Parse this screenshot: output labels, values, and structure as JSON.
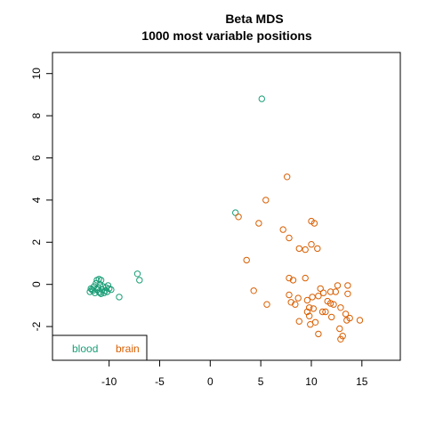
{
  "chart_data": {
    "type": "scatter",
    "title": "Beta MDS",
    "subtitle": "1000 most variable positions",
    "xlabel": "",
    "ylabel": "",
    "xlim": [
      -15.6,
      18.8
    ],
    "ylim": [
      -3.6,
      11.0
    ],
    "x_ticks": [
      -10,
      -5,
      0,
      5,
      10,
      15
    ],
    "y_ticks": [
      -2,
      0,
      2,
      4,
      6,
      8,
      10
    ],
    "grid": false,
    "legend_position": "bottom-left",
    "series": [
      {
        "name": "blood",
        "color": "#1b9e77",
        "points": [
          [
            5.1,
            8.8
          ],
          [
            2.5,
            3.4
          ],
          [
            -7.2,
            0.5
          ],
          [
            -7.0,
            0.2
          ],
          [
            -9.0,
            -0.6
          ],
          [
            -11.2,
            0.2
          ],
          [
            -11.0,
            0.25
          ],
          [
            -10.8,
            0.2
          ],
          [
            -11.3,
            0.05
          ],
          [
            -10.9,
            0.0
          ],
          [
            -11.5,
            -0.1
          ],
          [
            -10.6,
            -0.1
          ],
          [
            -11.8,
            -0.2
          ],
          [
            -11.2,
            -0.25
          ],
          [
            -10.7,
            -0.25
          ],
          [
            -10.3,
            -0.15
          ],
          [
            -10.0,
            -0.2
          ],
          [
            -11.6,
            -0.3
          ],
          [
            -11.9,
            -0.35
          ],
          [
            -11.0,
            -0.35
          ],
          [
            -10.5,
            -0.4
          ],
          [
            -11.4,
            -0.4
          ],
          [
            -10.8,
            -0.45
          ],
          [
            -10.2,
            -0.35
          ],
          [
            -11.1,
            -0.15
          ],
          [
            -10.4,
            -0.3
          ],
          [
            -11.7,
            -0.25
          ],
          [
            -10.9,
            -0.4
          ],
          [
            -10.1,
            -0.05
          ],
          [
            -9.8,
            -0.25
          ]
        ]
      },
      {
        "name": "brain",
        "color": "#d95f02",
        "points": [
          [
            7.6,
            5.1
          ],
          [
            5.5,
            4.0
          ],
          [
            2.8,
            3.2
          ],
          [
            4.8,
            2.9
          ],
          [
            7.2,
            2.6
          ],
          [
            7.8,
            2.2
          ],
          [
            10.0,
            3.0
          ],
          [
            10.3,
            2.9
          ],
          [
            10.0,
            1.9
          ],
          [
            10.6,
            1.7
          ],
          [
            8.8,
            1.7
          ],
          [
            9.4,
            1.65
          ],
          [
            3.6,
            1.15
          ],
          [
            7.8,
            0.3
          ],
          [
            8.2,
            0.2
          ],
          [
            9.4,
            0.3
          ],
          [
            10.9,
            -0.2
          ],
          [
            12.6,
            -0.05
          ],
          [
            13.6,
            -0.05
          ],
          [
            11.9,
            -0.35
          ],
          [
            12.4,
            -0.35
          ],
          [
            11.2,
            -0.4
          ],
          [
            4.3,
            -0.3
          ],
          [
            7.8,
            -0.5
          ],
          [
            10.1,
            -0.6
          ],
          [
            10.7,
            -0.55
          ],
          [
            8.7,
            -0.65
          ],
          [
            9.6,
            -0.75
          ],
          [
            13.6,
            -0.45
          ],
          [
            11.6,
            -0.8
          ],
          [
            11.9,
            -0.9
          ],
          [
            12.2,
            -0.95
          ],
          [
            8.0,
            -0.85
          ],
          [
            8.4,
            -0.95
          ],
          [
            5.6,
            -0.95
          ],
          [
            9.8,
            -1.1
          ],
          [
            10.2,
            -1.15
          ],
          [
            9.6,
            -1.3
          ],
          [
            11.1,
            -1.3
          ],
          [
            11.4,
            -1.3
          ],
          [
            12.9,
            -1.1
          ],
          [
            13.4,
            -1.4
          ],
          [
            9.8,
            -1.5
          ],
          [
            12.0,
            -1.55
          ],
          [
            13.8,
            -1.6
          ],
          [
            13.5,
            -1.7
          ],
          [
            14.8,
            -1.7
          ],
          [
            8.8,
            -1.75
          ],
          [
            10.4,
            -1.8
          ],
          [
            9.9,
            -1.9
          ],
          [
            12.8,
            -2.1
          ],
          [
            10.7,
            -2.35
          ],
          [
            13.1,
            -2.45
          ],
          [
            12.9,
            -2.6
          ]
        ]
      }
    ]
  }
}
